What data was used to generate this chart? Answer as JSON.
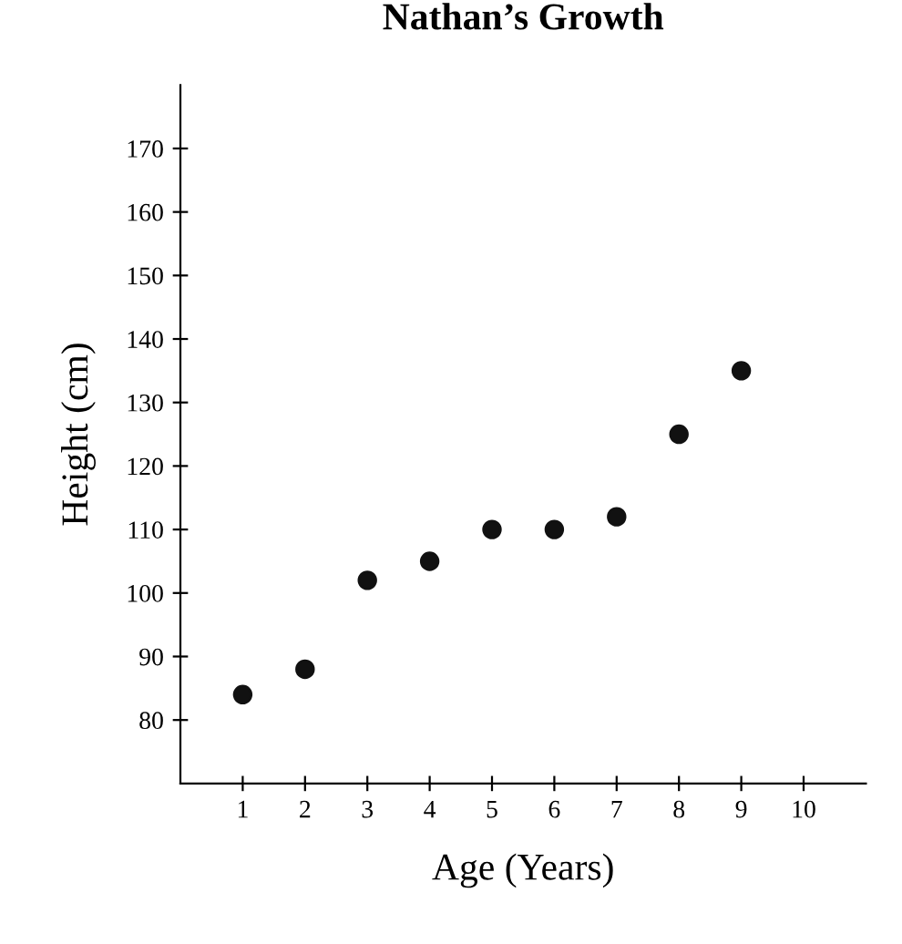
{
  "chart_data": {
    "type": "scatter",
    "title": "Nathan’s Growth",
    "xlabel": "Age (Years)",
    "ylabel": "Height (cm)",
    "x": [
      1,
      2,
      3,
      4,
      5,
      6,
      7,
      8,
      9
    ],
    "series": [
      {
        "color": "#111111",
        "values": [
          84,
          88,
          102,
          105,
          110,
          110,
          112,
          125,
          135
        ]
      }
    ],
    "xlim": [
      0,
      11
    ],
    "ylim": [
      70,
      180
    ],
    "xticks": [
      1,
      2,
      3,
      4,
      5,
      6,
      7,
      8,
      9,
      10
    ],
    "yticks": [
      80,
      90,
      100,
      110,
      120,
      130,
      140,
      150,
      160,
      170
    ],
    "marker": "circle",
    "grid": false,
    "legend": false
  }
}
